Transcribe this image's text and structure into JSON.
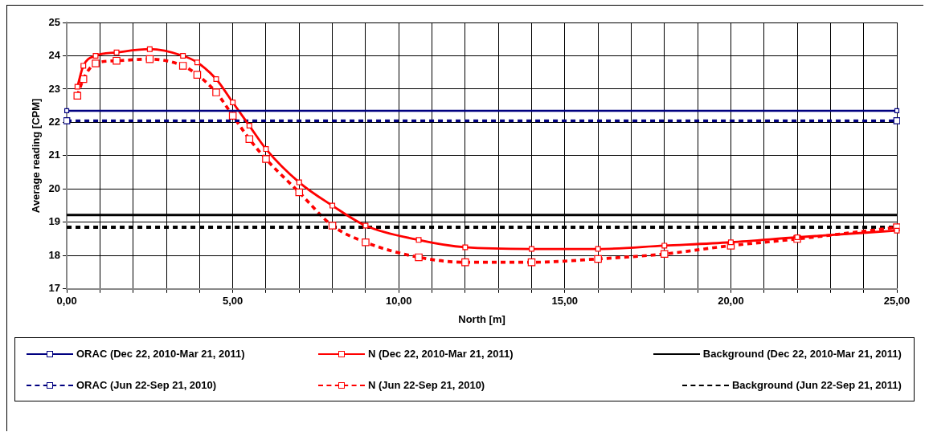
{
  "chart_data": {
    "type": "line",
    "xlabel": "North [m]",
    "ylabel": "Average reading [CPM]",
    "xlim": [
      0,
      25
    ],
    "ylim": [
      17,
      25
    ],
    "xticks": [
      {
        "value": 0,
        "label": "0,00"
      },
      {
        "value": 1,
        "label": null
      },
      {
        "value": 2,
        "label": null
      },
      {
        "value": 3,
        "label": null
      },
      {
        "value": 4,
        "label": null
      },
      {
        "value": 5,
        "label": "5,00"
      },
      {
        "value": 6,
        "label": null
      },
      {
        "value": 7,
        "label": null
      },
      {
        "value": 8,
        "label": null
      },
      {
        "value": 9,
        "label": null
      },
      {
        "value": 10,
        "label": "10,00"
      },
      {
        "value": 11,
        "label": null
      },
      {
        "value": 12,
        "label": null
      },
      {
        "value": 13,
        "label": null
      },
      {
        "value": 14,
        "label": null
      },
      {
        "value": 15,
        "label": "15,00"
      },
      {
        "value": 16,
        "label": null
      },
      {
        "value": 17,
        "label": null
      },
      {
        "value": 18,
        "label": null
      },
      {
        "value": 19,
        "label": null
      },
      {
        "value": 20,
        "label": "20,00"
      },
      {
        "value": 21,
        "label": null
      },
      {
        "value": 22,
        "label": null
      },
      {
        "value": 23,
        "label": null
      },
      {
        "value": 24,
        "label": null
      },
      {
        "value": 25,
        "label": "25,00"
      }
    ],
    "yticks": [
      17,
      18,
      19,
      20,
      21,
      22,
      23,
      24,
      25
    ],
    "grid": true,
    "legend": "bottom",
    "series": [
      {
        "name": "ORAC  (Dec 22, 2010-Mar 21, 2011)",
        "color": "#000080",
        "marker": "square",
        "line_style": "solid",
        "x": [
          0,
          25
        ],
        "values": [
          22.35,
          22.35
        ]
      },
      {
        "name": "N (Dec 22, 2010-Mar 21, 2011)",
        "color": "#ff0000",
        "marker": "square",
        "line_style": "solid",
        "x": [
          0.32,
          0.5,
          0.87,
          1.5,
          2.5,
          3.5,
          3.93,
          4.5,
          5,
          5.5,
          6,
          7,
          8,
          9,
          10.6,
          12,
          14,
          16,
          18,
          20,
          22,
          25
        ],
        "values": [
          23.07,
          23.7,
          24.0,
          24.1,
          24.2,
          24.0,
          23.8,
          23.3,
          22.6,
          21.9,
          21.2,
          20.2,
          19.5,
          18.9,
          18.47,
          18.25,
          18.2,
          18.2,
          18.3,
          18.4,
          18.55,
          18.75
        ]
      },
      {
        "name": "Background (Dec 22, 2010-Mar 21, 2011)",
        "color": "#000000",
        "marker": "none",
        "line_style": "solid",
        "x": [
          0,
          25
        ],
        "values": [
          19.22,
          19.22
        ]
      },
      {
        "name": "ORAC  (Jun 22-Sep 21, 2010)",
        "color": "#000080",
        "marker": "square",
        "line_style": "dashed",
        "x": [
          0,
          25
        ],
        "values": [
          22.05,
          22.05
        ]
      },
      {
        "name": "N (Jun 22-Sep 21, 2010)",
        "color": "#ff0000",
        "marker": "square",
        "line_style": "dashed",
        "x": [
          0.32,
          0.5,
          0.87,
          1.5,
          2.5,
          3.5,
          3.93,
          4.5,
          5,
          5.5,
          6,
          7,
          8,
          9,
          10.6,
          12,
          14,
          16,
          18,
          20,
          22,
          25
        ],
        "values": [
          22.8,
          23.3,
          23.77,
          23.85,
          23.9,
          23.7,
          23.43,
          22.9,
          22.2,
          21.5,
          20.9,
          19.9,
          18.9,
          18.4,
          17.95,
          17.8,
          17.8,
          17.9,
          18.05,
          18.3,
          18.5,
          18.85
        ]
      },
      {
        "name": "Background (Jun 22-Sep 21, 2011)",
        "color": "#000000",
        "marker": "none",
        "line_style": "dashed",
        "x": [
          0,
          25
        ],
        "values": [
          18.85,
          18.85
        ]
      }
    ]
  }
}
